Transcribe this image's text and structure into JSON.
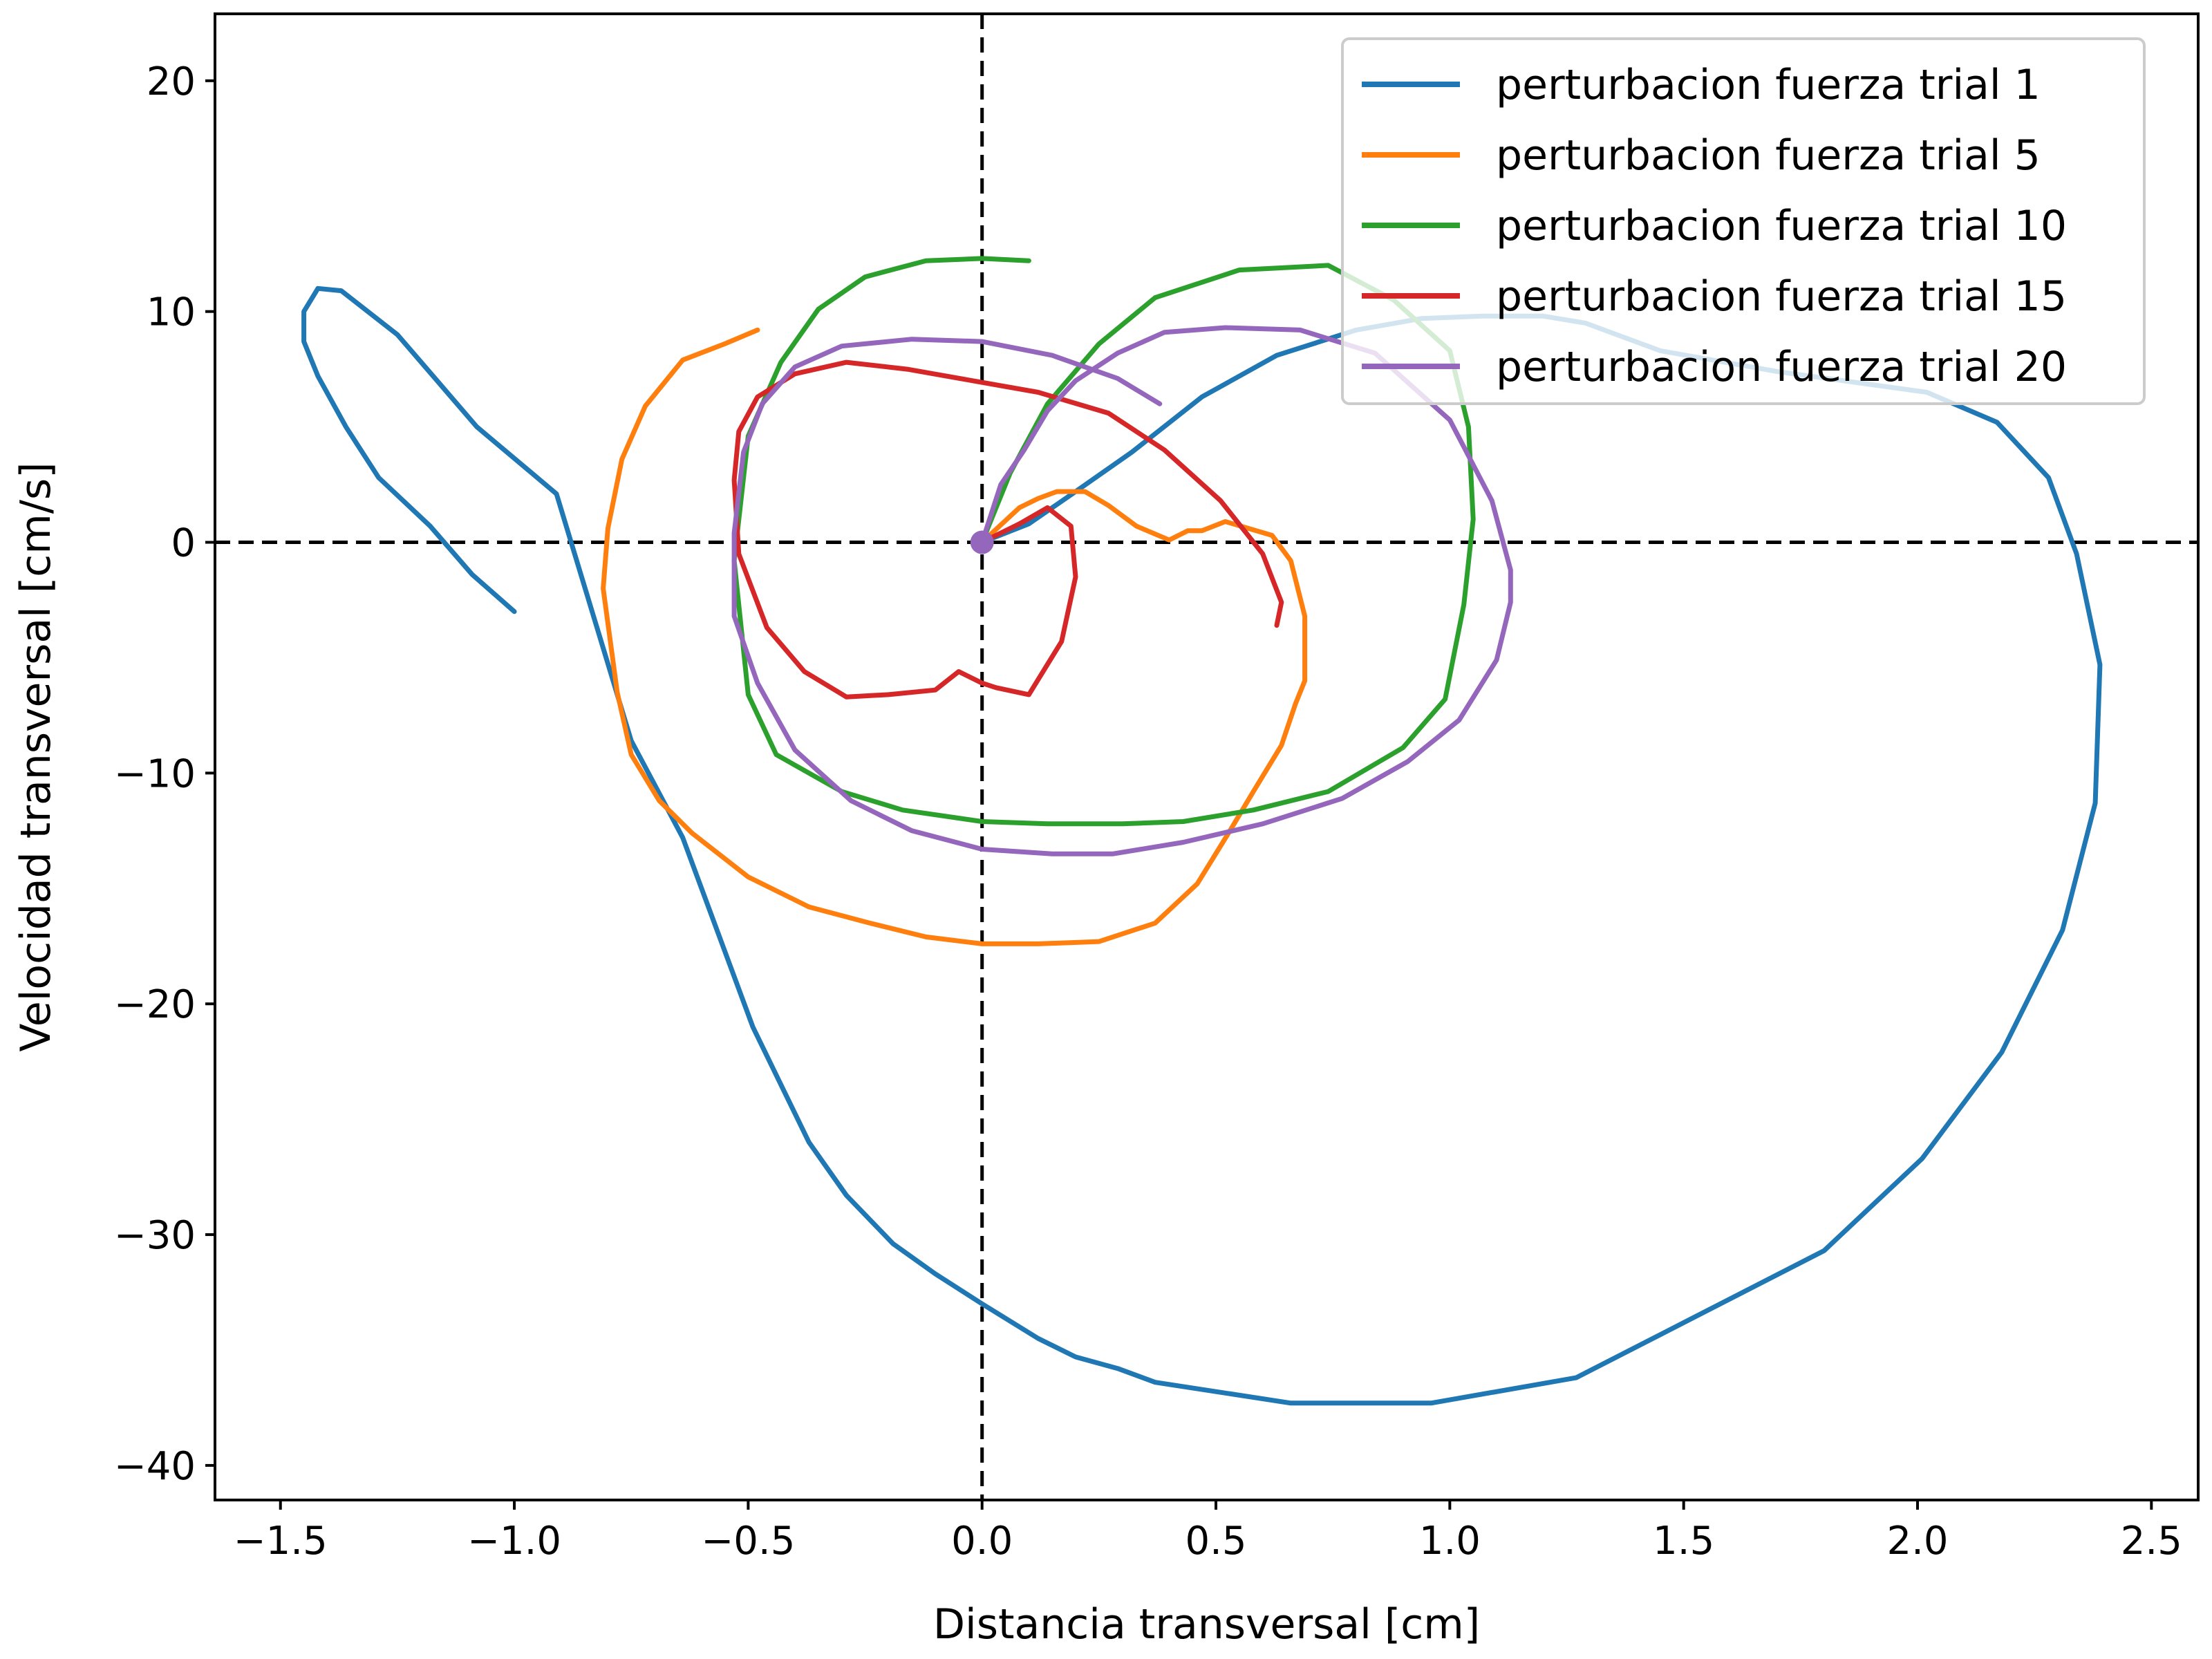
{
  "chart_data": {
    "type": "line",
    "xlabel": "Distancia transversal [cm]",
    "ylabel": "Velocidad transversal [cm/s]",
    "xlim": [
      -1.64,
      2.6
    ],
    "ylim": [
      -41.5,
      22.9
    ],
    "xticks": [
      -1.5,
      -1.0,
      -0.5,
      0.0,
      0.5,
      1.0,
      1.5,
      2.0,
      2.5
    ],
    "xtick_labels": [
      "−1.5",
      "−1.0",
      "−0.5",
      "0.0",
      "0.5",
      "1.0",
      "1.5",
      "2.0",
      "2.5"
    ],
    "yticks": [
      20,
      10,
      0,
      -10,
      -20,
      -30,
      -40
    ],
    "ytick_labels": [
      "20",
      "10",
      "0",
      "−10",
      "−20",
      "−30",
      "−40"
    ],
    "grid": false,
    "reference_lines": {
      "x": 0,
      "y": 0,
      "style": "dashed"
    },
    "legend_position": "top-right",
    "series": [
      {
        "name": "perturbacion fuerza trial 1",
        "color": "#1f77b4",
        "x": [
          0.0,
          0.1,
          0.2,
          0.32,
          0.47,
          0.63,
          0.8,
          0.94,
          1.07,
          1.2,
          1.29,
          1.45,
          1.7,
          2.02,
          2.17,
          2.28,
          2.34,
          2.39,
          2.38,
          2.31,
          2.18,
          2.01,
          1.8,
          1.27,
          0.96,
          0.66,
          0.37,
          0.29,
          0.2,
          0.12,
          0.0,
          -0.1,
          -0.19,
          -0.29,
          -0.37,
          -0.49,
          -0.64,
          -0.75,
          -0.91,
          -1.08,
          -1.25,
          -1.37,
          -1.42,
          -1.45,
          -1.45,
          -1.42,
          -1.36,
          -1.29,
          -1.18,
          -1.09,
          -1.0
        ],
        "y": [
          0,
          0.8,
          2.2,
          3.9,
          6.3,
          8.1,
          9.2,
          9.7,
          9.8,
          9.8,
          9.5,
          8.3,
          7.4,
          6.5,
          5.2,
          2.8,
          -0.5,
          -5.3,
          -11.3,
          -16.8,
          -22.1,
          -26.7,
          -30.7,
          -36.2,
          -37.3,
          -37.3,
          -36.4,
          -35.8,
          -35.3,
          -34.5,
          -33.0,
          -31.7,
          -30.4,
          -28.3,
          -26.0,
          -21.0,
          -12.8,
          -8.6,
          2.1,
          5.0,
          9.0,
          10.9,
          11.0,
          10.0,
          8.7,
          7.2,
          5.0,
          2.8,
          0.7,
          -1.4,
          -3.0
        ]
      },
      {
        "name": "perturbacion fuerza trial 5",
        "color": "#ff7f0e",
        "x": [
          0.0,
          0.08,
          0.12,
          0.16,
          0.22,
          0.27,
          0.33,
          0.4,
          0.44,
          0.47,
          0.52,
          0.57,
          0.62,
          0.66,
          0.69,
          0.69,
          0.67,
          0.64,
          0.58,
          0.53,
          0.46,
          0.37,
          0.25,
          0.12,
          0.0,
          -0.12,
          -0.24,
          -0.37,
          -0.5,
          -0.62,
          -0.69,
          -0.75,
          -0.78,
          -0.81,
          -0.8,
          -0.77,
          -0.72,
          -0.64,
          -0.55,
          -0.48
        ],
        "y": [
          0,
          1.5,
          1.9,
          2.2,
          2.2,
          1.6,
          0.7,
          0.1,
          0.5,
          0.5,
          0.9,
          0.6,
          0.3,
          -0.8,
          -3.2,
          -6.0,
          -7.0,
          -8.8,
          -10.8,
          -12.5,
          -14.8,
          -16.5,
          -17.3,
          -17.4,
          -17.4,
          -17.1,
          -16.5,
          -15.8,
          -14.5,
          -12.6,
          -11.2,
          -9.2,
          -6.5,
          -2.0,
          0.6,
          3.6,
          5.9,
          7.9,
          8.6,
          9.2
        ]
      },
      {
        "name": "perturbacion fuerza trial 10",
        "color": "#2ca02c",
        "x": [
          0.0,
          0.06,
          0.14,
          0.25,
          0.37,
          0.55,
          0.74,
          0.88,
          1.0,
          1.04,
          1.05,
          1.03,
          0.99,
          0.9,
          0.74,
          0.58,
          0.43,
          0.3,
          0.14,
          0.0,
          -0.17,
          -0.3,
          -0.44,
          -0.5,
          -0.53,
          -0.5,
          -0.43,
          -0.35,
          -0.25,
          -0.12,
          0.0,
          0.1
        ],
        "y": [
          0,
          3.0,
          6.0,
          8.6,
          10.6,
          11.8,
          12.0,
          10.5,
          8.3,
          5.0,
          1.0,
          -2.7,
          -6.8,
          -8.9,
          -10.8,
          -11.6,
          -12.1,
          -12.2,
          -12.2,
          -12.1,
          -11.6,
          -10.8,
          -9.2,
          -6.6,
          -0.8,
          4.6,
          7.8,
          10.1,
          11.5,
          12.2,
          12.3,
          12.2
        ]
      },
      {
        "name": "perturbacion fuerza trial 15",
        "color": "#d62728",
        "x": [
          0.0,
          0.08,
          0.14,
          0.19,
          0.2,
          0.17,
          0.1,
          0.03,
          0.0,
          -0.05,
          -0.1,
          -0.2,
          -0.29,
          -0.38,
          -0.46,
          -0.52,
          -0.53,
          -0.52,
          -0.48,
          -0.4,
          -0.29,
          -0.16,
          -0.02,
          0.12,
          0.27,
          0.39,
          0.51,
          0.6,
          0.64,
          0.63
        ],
        "y": [
          0,
          0.8,
          1.5,
          0.7,
          -1.5,
          -4.3,
          -6.6,
          -6.3,
          -6.1,
          -5.6,
          -6.4,
          -6.6,
          -6.7,
          -5.6,
          -3.7,
          -0.5,
          2.7,
          4.8,
          6.3,
          7.3,
          7.8,
          7.5,
          7.0,
          6.5,
          5.6,
          4.0,
          1.8,
          -0.5,
          -2.6,
          -3.6
        ]
      },
      {
        "name": "perturbacion fuerza trial 20",
        "color": "#9467bd",
        "x": [
          0.0,
          0.04,
          0.09,
          0.14,
          0.2,
          0.29,
          0.39,
          0.52,
          0.68,
          0.84,
          1.0,
          1.09,
          1.13,
          1.13,
          1.1,
          1.02,
          0.91,
          0.77,
          0.6,
          0.43,
          0.28,
          0.15,
          0.0,
          -0.15,
          -0.28,
          -0.4,
          -0.48,
          -0.53,
          -0.53,
          -0.51,
          -0.47,
          -0.4,
          -0.3,
          -0.15,
          0.0,
          0.15,
          0.29,
          0.38
        ],
        "y": [
          0,
          2.5,
          4.0,
          5.7,
          7.0,
          8.2,
          9.1,
          9.3,
          9.2,
          8.2,
          5.3,
          1.8,
          -1.2,
          -2.6,
          -5.1,
          -7.7,
          -9.5,
          -11.1,
          -12.2,
          -13.0,
          -13.5,
          -13.5,
          -13.3,
          -12.5,
          -11.2,
          -9.0,
          -6.1,
          -3.2,
          0.4,
          3.9,
          6.0,
          7.6,
          8.5,
          8.8,
          8.7,
          8.1,
          7.1,
          6.0
        ]
      }
    ],
    "marker": {
      "x": 0,
      "y": 0,
      "color": "#9467bd"
    }
  }
}
